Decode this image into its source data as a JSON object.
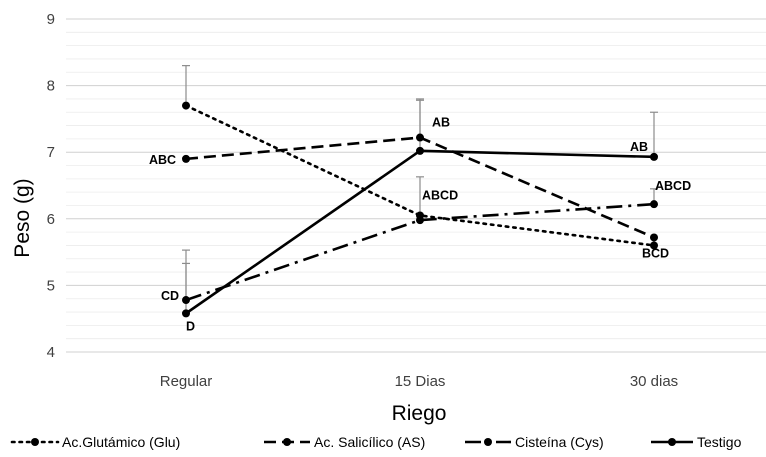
{
  "chart_data": {
    "type": "line",
    "xlabel": "Riego",
    "ylabel": "Peso (g)",
    "categories": [
      "Regular",
      "15 Dias",
      "30 dias"
    ],
    "ylim": [
      4,
      9
    ],
    "yticks": [
      4,
      5,
      6,
      7,
      8,
      9
    ],
    "grid": "horizontal",
    "legend_position": "bottom",
    "series": [
      {
        "name": "Ac.Glutámico (Glu)",
        "style": "dotted",
        "values": [
          7.7,
          6.05,
          5.6
        ],
        "error_upper": [
          8.3,
          null,
          null
        ]
      },
      {
        "name": "Ac. Salicílico (AS)",
        "style": "dashed",
        "values": [
          6.9,
          7.22,
          5.72
        ],
        "error_upper": [
          null,
          7.8,
          null
        ]
      },
      {
        "name": "Cisteína (Cys)",
        "style": "dash-dot",
        "values": [
          4.78,
          5.98,
          6.22
        ],
        "error_upper": [
          5.33,
          6.63,
          6.45
        ]
      },
      {
        "name": "Testigo",
        "style": "solid",
        "values": [
          4.58,
          7.02,
          6.93
        ],
        "error_upper": [
          5.53,
          7.78,
          7.6
        ]
      }
    ],
    "annotations": [
      {
        "text": "ABC",
        "category": "Regular",
        "y": 6.9
      },
      {
        "text": "CD",
        "category": "Regular",
        "y": 4.78
      },
      {
        "text": "D",
        "category": "Regular",
        "y": 4.58
      },
      {
        "text": "AB",
        "category": "15 Dias",
        "y": 7.22
      },
      {
        "text": "ABCD",
        "category": "15 Dias",
        "y": 6.05
      },
      {
        "text": "AB",
        "category": "30 dias",
        "y": 6.93
      },
      {
        "text": "ABCD",
        "category": "30 dias",
        "y": 6.22
      },
      {
        "text": "BCD",
        "category": "30 dias",
        "y": 5.6
      }
    ]
  }
}
